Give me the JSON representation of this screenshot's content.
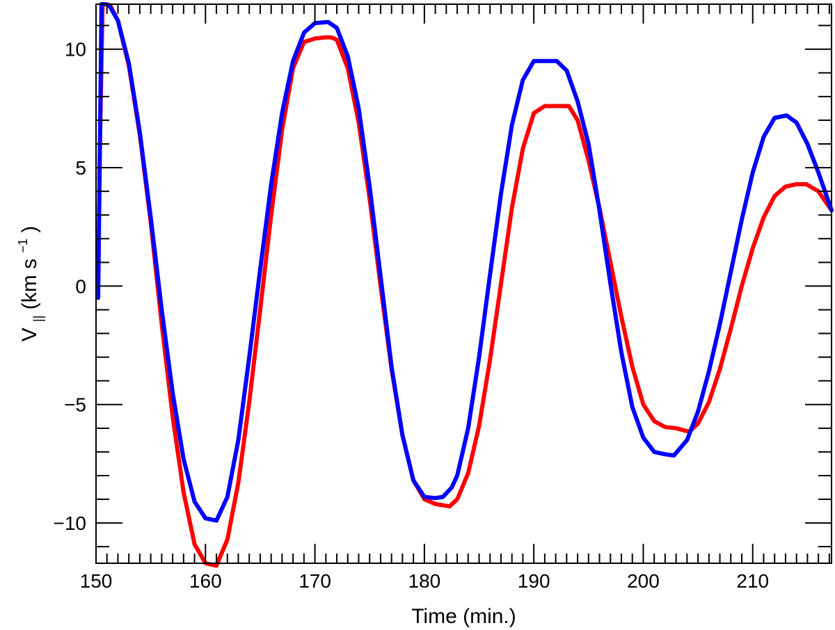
{
  "chart_data": {
    "type": "line",
    "title": "",
    "xlabel": "Time (min.)",
    "ylabel": {
      "main": "V",
      "sub": "||",
      "units_prefix": " (km s",
      "units_exp": "−1",
      "units_suffix": ")"
    },
    "xlim": [
      150,
      217.2
    ],
    "ylim": [
      -11.7,
      11.9
    ],
    "x_ticks": [
      150,
      160,
      170,
      180,
      190,
      200,
      210
    ],
    "x_tick_labels": [
      "150",
      "160",
      "170",
      "180",
      "190",
      "200",
      "210"
    ],
    "y_ticks": [
      -10,
      -5,
      0,
      5,
      10
    ],
    "y_tick_labels": [
      "−10",
      "−5",
      "0",
      "5",
      "10"
    ],
    "x_minor_step": 1,
    "y_minor_step": 1,
    "grid": false,
    "legend": "none",
    "series": [
      {
        "color": "#ff0000",
        "x": [
          150.3,
          150.6,
          150.9,
          151.3,
          152,
          153,
          154,
          155,
          156,
          157,
          158,
          159,
          160,
          161,
          162,
          163,
          164,
          165,
          166,
          167,
          168,
          169,
          170,
          171,
          171.5,
          172,
          173,
          174,
          175,
          176,
          177,
          178,
          179,
          180,
          181,
          182.3,
          183,
          184,
          185,
          186,
          187,
          188,
          189,
          190,
          191,
          192,
          193.2,
          194,
          195,
          196,
          197,
          198,
          199,
          200,
          201,
          202,
          203,
          204.2,
          205,
          206,
          207,
          208,
          209,
          210,
          211,
          212,
          213,
          214,
          214.9,
          216,
          217.2
        ],
        "y": [
          4.5,
          11.9,
          11.9,
          11.85,
          11.2,
          9.3,
          6.4,
          2.7,
          -1.6,
          -5.5,
          -8.7,
          -10.9,
          -11.7,
          -11.8,
          -10.7,
          -8.3,
          -4.9,
          -1.0,
          3.0,
          6.6,
          9.2,
          10.3,
          10.45,
          10.5,
          10.5,
          10.4,
          9.2,
          6.9,
          3.7,
          0.0,
          -3.5,
          -6.3,
          -8.2,
          -9.0,
          -9.2,
          -9.3,
          -9.0,
          -7.9,
          -5.9,
          -3.1,
          0.1,
          3.3,
          5.8,
          7.3,
          7.6,
          7.6,
          7.6,
          7.0,
          5.3,
          3.3,
          1.0,
          -1.3,
          -3.4,
          -5.0,
          -5.7,
          -5.95,
          -6.0,
          -6.15,
          -5.8,
          -4.9,
          -3.5,
          -1.8,
          0.0,
          1.6,
          2.9,
          3.8,
          4.2,
          4.3,
          4.3,
          4.0,
          3.2
        ]
      },
      {
        "color": "#0000ff",
        "x": [
          150.2,
          150.5,
          150.8,
          151.2,
          152,
          153,
          154,
          155,
          156,
          157,
          158,
          159,
          160,
          161,
          162,
          163,
          164,
          165,
          166,
          167,
          168,
          169,
          170,
          171.2,
          172,
          173,
          174,
          175,
          176,
          177,
          178,
          179,
          180,
          181,
          181.7,
          182.5,
          183,
          184,
          185,
          186,
          187,
          188,
          189,
          190,
          191,
          192.1,
          193,
          194,
          195,
          196,
          197,
          198,
          199,
          200,
          201,
          202,
          202.8,
          204,
          205,
          206,
          207,
          208,
          209,
          210,
          211,
          212,
          213.1,
          214,
          215,
          216,
          217.2
        ],
        "y": [
          -0.5,
          11.9,
          11.9,
          11.85,
          11.2,
          9.4,
          6.5,
          2.9,
          -1.0,
          -4.5,
          -7.3,
          -9.1,
          -9.8,
          -9.9,
          -8.9,
          -6.5,
          -3.0,
          0.7,
          4.3,
          7.3,
          9.5,
          10.7,
          11.1,
          11.15,
          10.9,
          9.7,
          7.5,
          4.2,
          0.4,
          -3.4,
          -6.3,
          -8.2,
          -8.9,
          -8.95,
          -8.9,
          -8.5,
          -8.0,
          -6.0,
          -3.0,
          0.5,
          3.9,
          6.8,
          8.7,
          9.5,
          9.5,
          9.5,
          9.1,
          7.8,
          6.0,
          3.2,
          0.1,
          -2.8,
          -5.1,
          -6.4,
          -7.0,
          -7.1,
          -7.15,
          -6.5,
          -5.3,
          -3.6,
          -1.6,
          0.6,
          2.8,
          4.8,
          6.3,
          7.1,
          7.2,
          6.9,
          6.0,
          4.8,
          3.2
        ]
      }
    ]
  }
}
